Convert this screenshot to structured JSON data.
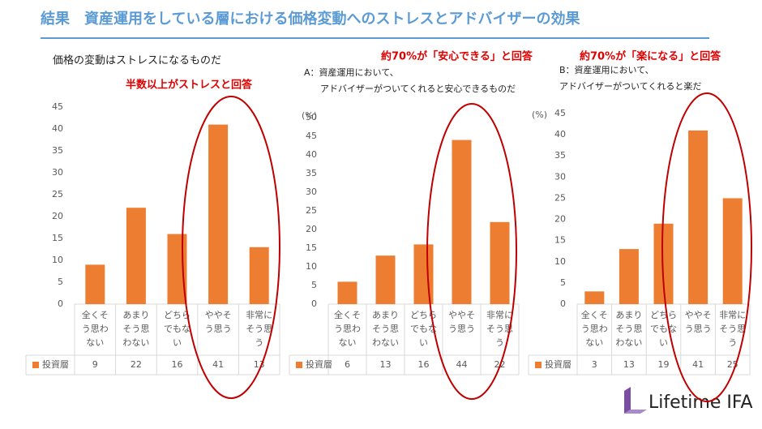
{
  "title": "結果　資産運用をしている層における価格変動へのストレスとアドバイザーの効果",
  "logo": "Lifetime IFA",
  "chart_data": [
    {
      "type": "bar",
      "title": "価格の変動はストレスになるものだ",
      "annotation": "半数以上がストレスと回答",
      "categories": [
        "全くそう思わない",
        "あまりそう思わない",
        "どちらでもない",
        "ややそう思う",
        "非常にそう思う"
      ],
      "series": [
        {
          "name": "投資層",
          "color": "#ed7d31",
          "values": [
            9,
            22,
            16,
            41,
            13
          ]
        }
      ],
      "ylim": [
        0,
        45
      ],
      "yticks": [
        0,
        5,
        10,
        15,
        20,
        25,
        30,
        35,
        40,
        45
      ],
      "grid": false
    },
    {
      "type": "bar",
      "subtitle": [
        "A：資産運用において、",
        "アドバイザーがついてくれると安心できるものだ"
      ],
      "annotation": "約70%が「安心できる」と回答",
      "y_unit": "(%)",
      "categories": [
        "全くそう思わない",
        "あまりそう思わない",
        "どちらでもない",
        "ややそう思う",
        "非常にそう思う"
      ],
      "series": [
        {
          "name": "投資層",
          "color": "#ed7d31",
          "values": [
            6,
            13,
            16,
            44,
            22
          ]
        }
      ],
      "ylim": [
        0,
        50
      ],
      "yticks": [
        0,
        5,
        10,
        15,
        20,
        25,
        30,
        35,
        40,
        45,
        50
      ],
      "grid": false
    },
    {
      "type": "bar",
      "subtitle": [
        "B：資産運用において、",
        "アドバイザーがついてくれると楽だ"
      ],
      "annotation": "約70%が「楽になる」と回答",
      "y_unit": "(%)",
      "categories": [
        "全くそう思わない",
        "あまりそう思わない",
        "どちらでもない",
        "ややそう思う",
        "非常にそう思う"
      ],
      "series": [
        {
          "name": "投資層",
          "color": "#ed7d31",
          "values": [
            3,
            13,
            19,
            41,
            25
          ]
        }
      ],
      "ylim": [
        0,
        45
      ],
      "yticks": [
        0,
        5,
        10,
        15,
        20,
        25,
        30,
        35,
        40,
        45
      ],
      "grid": false
    }
  ]
}
